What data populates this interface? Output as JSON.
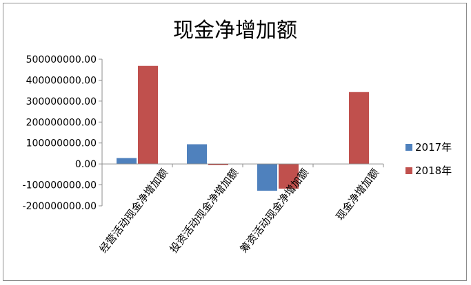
{
  "chart_data": {
    "type": "bar",
    "title": "现金净增加额",
    "categories": [
      "经营活动现金净增加额",
      "投资活动现金净增加额",
      "筹资活动现金净增加额",
      "现金净增加额"
    ],
    "series": [
      {
        "name": "2017年",
        "color": "#4f81bd",
        "values": [
          28000000,
          94000000,
          -128000000,
          0
        ]
      },
      {
        "name": "2018年",
        "color": "#c0504d",
        "values": [
          468000000,
          -6000000,
          -118000000,
          343000000
        ]
      }
    ],
    "ylim": [
      -200000000,
      500000000
    ],
    "yticks": [
      500000000,
      400000000,
      300000000,
      200000000,
      100000000,
      0,
      -100000000,
      -200000000
    ],
    "ytick_labels": [
      "500000000.00",
      "400000000.00",
      "300000000.00",
      "200000000.00",
      "100000000.00",
      "0.00",
      "-100000000.00",
      "-200000000.00"
    ],
    "legend_position": "right",
    "grid": false
  }
}
